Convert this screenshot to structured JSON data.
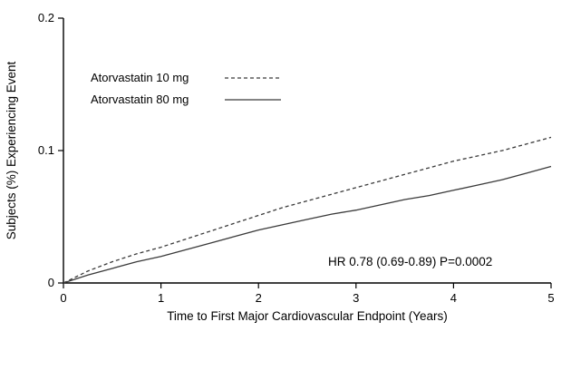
{
  "page": {
    "background": "#ffffff",
    "text_color": "#000000"
  },
  "chart_data": {
    "type": "line",
    "title": "",
    "xlabel": "Time to First Major Cardiovascular Endpoint (Years)",
    "ylabel": "Subjects (%) Experiencing Event",
    "xlim": [
      0,
      5
    ],
    "ylim": [
      0,
      0.2
    ],
    "xticks": [
      0,
      1,
      2,
      3,
      4,
      5
    ],
    "xtick_labels": [
      "0",
      "1",
      "2",
      "3",
      "4",
      "5"
    ],
    "yticks": [
      0,
      0.1,
      0.2
    ],
    "ytick_labels": [
      "0",
      "0.1",
      "0.2"
    ],
    "grid": false,
    "legend_position": "inside-upper-left",
    "annotation": "HR 0.78 (0.69-0.89)  P=0.0002",
    "line_color": "#3a3a3a",
    "x": [
      0,
      0.25,
      0.5,
      0.75,
      1.0,
      1.25,
      1.5,
      1.75,
      2.0,
      2.25,
      2.5,
      2.75,
      3.0,
      3.25,
      3.5,
      3.75,
      4.0,
      4.25,
      4.5,
      4.75,
      5.0
    ],
    "series": [
      {
        "name": "Atorvastatin 10 mg",
        "style": "dashed",
        "color": "#3a3a3a",
        "values": [
          0,
          0.009,
          0.016,
          0.022,
          0.027,
          0.033,
          0.039,
          0.045,
          0.051,
          0.057,
          0.062,
          0.067,
          0.072,
          0.077,
          0.082,
          0.087,
          0.092,
          0.096,
          0.1,
          0.105,
          0.11
        ]
      },
      {
        "name": "Atorvastatin 80 mg",
        "style": "solid",
        "color": "#3a3a3a",
        "values": [
          0,
          0.006,
          0.011,
          0.016,
          0.02,
          0.025,
          0.03,
          0.035,
          0.04,
          0.044,
          0.048,
          0.052,
          0.055,
          0.059,
          0.063,
          0.066,
          0.07,
          0.074,
          0.078,
          0.083,
          0.088
        ]
      }
    ]
  }
}
